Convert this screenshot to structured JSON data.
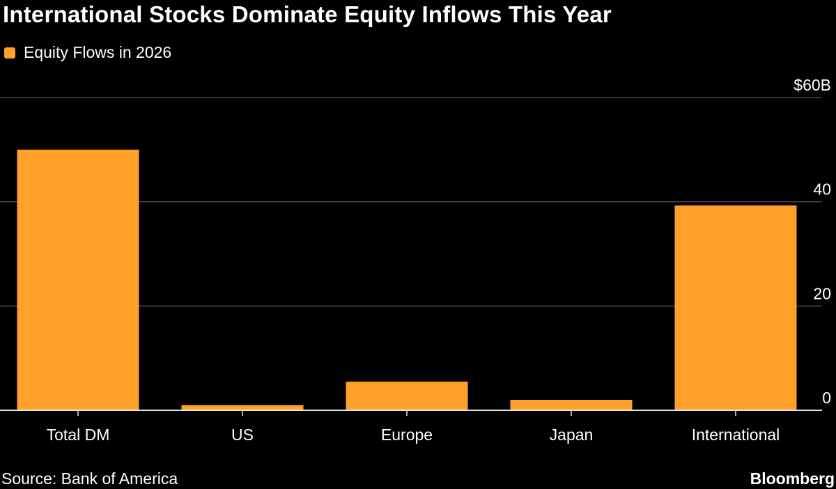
{
  "title": "International Stocks Dominate Equity Inflows This Year",
  "source": "Source: Bank of America",
  "brand": "Bloomberg",
  "colors": {
    "background": "#000000",
    "bar": "#ffa028",
    "grid": "#4d4d4d",
    "axis": "#e6e6e6",
    "text": "#ffffff"
  },
  "chart_data": {
    "type": "bar",
    "categories": [
      "Total DM",
      "US",
      "Europe",
      "Japan",
      "International"
    ],
    "series": [
      {
        "name": "Equity Flows in 2026",
        "values": [
          50,
          1,
          5.5,
          2,
          39.3
        ]
      }
    ],
    "ylim": [
      0,
      60
    ],
    "yticks": [
      0,
      20,
      40,
      60
    ],
    "ytick_labels": [
      "0",
      "20",
      "40",
      "$60B"
    ],
    "y_axis_position": "right",
    "grid": true,
    "legend_position": "top-left"
  }
}
